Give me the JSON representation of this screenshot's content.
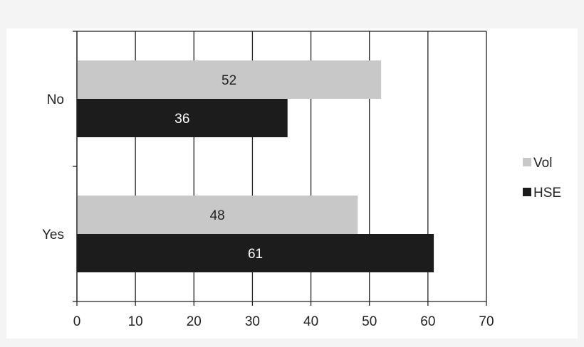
{
  "chart_data": {
    "type": "bar",
    "orientation": "horizontal",
    "categories": [
      "No",
      "Yes"
    ],
    "series": [
      {
        "name": "Vol",
        "values": [
          52,
          48
        ],
        "color": "#c8c8c8",
        "label_color": "#222222"
      },
      {
        "name": "HSE",
        "values": [
          36,
          61
        ],
        "color": "#1c1c1c",
        "label_color": "#ffffff"
      }
    ],
    "xlim": [
      0,
      70
    ],
    "x_ticks": [
      0,
      10,
      20,
      30,
      40,
      50,
      60,
      70
    ],
    "grid": "vertical",
    "legend_position": "right",
    "title": "",
    "xlabel": "",
    "ylabel": ""
  }
}
